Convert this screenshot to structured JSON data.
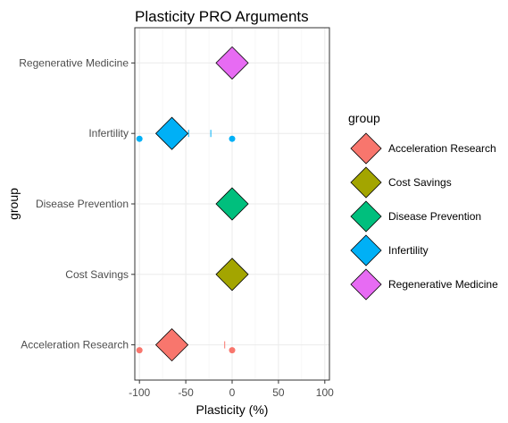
{
  "chart_data": {
    "type": "scatter",
    "title": "Plasticity PRO Arguments",
    "xlabel": "Plasticity (%)",
    "ylabel": "group",
    "xlim": [
      -105,
      105
    ],
    "x_ticks": [
      -100,
      -50,
      0,
      50,
      100
    ],
    "x_tick_labels": [
      "-100",
      "-50",
      "0",
      "50",
      "100"
    ],
    "categories": [
      "Acceleration Research",
      "Cost Savings",
      "Disease Prevention",
      "Infertility",
      "Regenerative Medicine"
    ],
    "grid": true,
    "legend": {
      "title": "group",
      "position": "right",
      "entries": [
        "Acceleration Research",
        "Cost Savings",
        "Disease Prevention",
        "Infertility",
        "Regenerative Medicine"
      ]
    },
    "colors": {
      "Acceleration Research": "#F8766D",
      "Cost Savings": "#A3A500",
      "Disease Prevention": "#00BF7D",
      "Infertility": "#00B0F6",
      "Regenerative Medicine": "#E76BF3"
    },
    "means": [
      {
        "group": "Acceleration Research",
        "x": -65
      },
      {
        "group": "Cost Savings",
        "x": 0
      },
      {
        "group": "Disease Prevention",
        "x": 0
      },
      {
        "group": "Infertility",
        "x": -65
      },
      {
        "group": "Regenerative Medicine",
        "x": 0
      }
    ],
    "points": [
      {
        "group": "Acceleration Research",
        "x": -100
      },
      {
        "group": "Acceleration Research",
        "x": 0
      },
      {
        "group": "Infertility",
        "x": -100
      },
      {
        "group": "Infertility",
        "x": 0
      }
    ],
    "ticks": [
      {
        "group": "Acceleration Research",
        "x": -8
      },
      {
        "group": "Infertility",
        "x": -47
      },
      {
        "group": "Infertility",
        "x": -23
      }
    ]
  }
}
